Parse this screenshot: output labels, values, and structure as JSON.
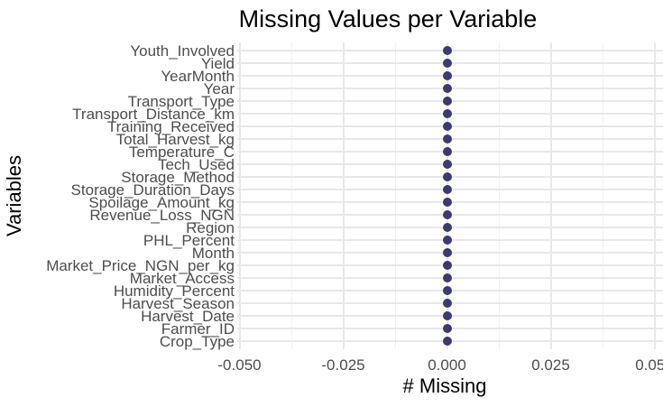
{
  "chart_data": {
    "type": "scatter",
    "title": "Missing Values per Variable",
    "xlabel": "# Missing",
    "ylabel": "Variables",
    "categories": [
      "Youth_Involved",
      "Yield",
      "YearMonth",
      "Year",
      "Transport_Type",
      "Transport_Distance_km",
      "Training_Received",
      "Total_Harvest_kg",
      "Temperature_C",
      "Tech_Used",
      "Storage_Method",
      "Storage_Duration_Days",
      "Spoilage_Amount_kg",
      "Revenue_Loss_NGN",
      "Region",
      "PHL_Percent",
      "Month",
      "Market_Price_NGN_per_kg",
      "Market_Access",
      "Humidity_Percent",
      "Harvest_Season",
      "Harvest_Date",
      "Farmer_ID",
      "Crop_Type"
    ],
    "values": [
      0,
      0,
      0,
      0,
      0,
      0,
      0,
      0,
      0,
      0,
      0,
      0,
      0,
      0,
      0,
      0,
      0,
      0,
      0,
      0,
      0,
      0,
      0,
      0
    ],
    "xlim": [
      -0.05,
      0.05
    ],
    "x_tick_values": [
      -0.05,
      -0.025,
      0.0,
      0.025,
      0.05
    ],
    "x_tick_labels": [
      "-0.050",
      "-0.025",
      "0.000",
      "0.025",
      "0.050"
    ],
    "x_minor_tick_values": [
      -0.0375,
      -0.0125,
      0.0125,
      0.0375
    ],
    "grid": "major-and-minor",
    "legend": "none",
    "point_color": "#3c3b6b",
    "grid_major_color": "#e8e8e8",
    "grid_minor_color": "#f1f1f1",
    "tick_text_color": "#4d4d4d",
    "title_text_color": "#000000",
    "background_color": "#ffffff"
  }
}
